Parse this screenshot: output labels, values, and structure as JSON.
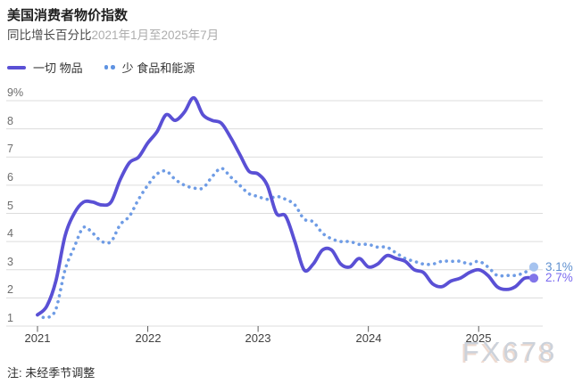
{
  "header": {
    "title": "美国消费者物价指数",
    "subtitle_metric": "同比增长百分比",
    "subtitle_range": "2021年1月至2025年7月"
  },
  "legend": [
    {
      "label": "一切 物品",
      "style": "solid",
      "color": "#5a50d5"
    },
    {
      "label": "少 食品和能源",
      "style": "dotted",
      "color": "#5f93e2"
    }
  ],
  "chart_data": {
    "type": "line",
    "title": "美国消费者物价指数",
    "subtitle": "同比增长百分比 2021年1月至2025年7月",
    "x_unit": "month",
    "x_start": "2021-01",
    "x_end": "2025-07",
    "ylim": [
      1,
      9
    ],
    "grid": "horizontal",
    "y_ticks": [
      {
        "value": 9,
        "label": "9%"
      },
      {
        "value": 8,
        "label": "8"
      },
      {
        "value": 7,
        "label": "7"
      },
      {
        "value": 6,
        "label": "6"
      },
      {
        "value": 5,
        "label": "5"
      },
      {
        "value": 4,
        "label": "4"
      },
      {
        "value": 3,
        "label": "3"
      },
      {
        "value": 2,
        "label": "2"
      },
      {
        "value": 1,
        "label": "1"
      }
    ],
    "x_ticks": [
      {
        "label": "2021",
        "month_index": 0
      },
      {
        "label": "2022",
        "month_index": 12
      },
      {
        "label": "2023",
        "month_index": 24
      },
      {
        "label": "2024",
        "month_index": 36
      },
      {
        "label": "2025",
        "month_index": 48
      }
    ],
    "series": [
      {
        "name": "一切 物品",
        "style": "solid",
        "color": "#5a50d5",
        "values": [
          1.4,
          1.7,
          2.6,
          4.2,
          5.0,
          5.4,
          5.4,
          5.3,
          5.4,
          6.2,
          6.8,
          7.0,
          7.5,
          7.9,
          8.5,
          8.3,
          8.6,
          9.1,
          8.5,
          8.3,
          8.2,
          7.7,
          7.1,
          6.5,
          6.4,
          6.0,
          5.0,
          4.9,
          4.0,
          3.0,
          3.2,
          3.7,
          3.7,
          3.2,
          3.1,
          3.4,
          3.1,
          3.2,
          3.5,
          3.4,
          3.3,
          3.0,
          2.9,
          2.5,
          2.4,
          2.6,
          2.7,
          2.9,
          3.0,
          2.8,
          2.4,
          2.3,
          2.4,
          2.7,
          2.7
        ]
      },
      {
        "name": "少 食品和能源",
        "style": "dotted",
        "color": "#6f9ce5",
        "values": [
          1.4,
          1.3,
          1.6,
          3.0,
          3.8,
          4.5,
          4.3,
          4.0,
          4.0,
          4.6,
          4.9,
          5.5,
          6.0,
          6.4,
          6.5,
          6.2,
          6.0,
          5.9,
          5.9,
          6.3,
          6.6,
          6.3,
          6.0,
          5.7,
          5.6,
          5.5,
          5.6,
          5.5,
          5.3,
          4.8,
          4.7,
          4.3,
          4.1,
          4.0,
          4.0,
          3.9,
          3.9,
          3.8,
          3.8,
          3.6,
          3.4,
          3.3,
          3.2,
          3.2,
          3.3,
          3.3,
          3.3,
          3.2,
          3.3,
          3.1,
          2.8,
          2.8,
          2.8,
          2.9,
          3.1
        ]
      }
    ],
    "end_labels": [
      {
        "series": "少 食品和能源",
        "label": "3.1%",
        "color": "#5f90cf",
        "marker_color": "#a6c3ef"
      },
      {
        "series": "一切 物品",
        "label": "2.7%",
        "color": "#7a6af0",
        "marker_color": "#8175e9"
      }
    ]
  },
  "note": "注: 未经季节调整",
  "watermark": "FX678"
}
